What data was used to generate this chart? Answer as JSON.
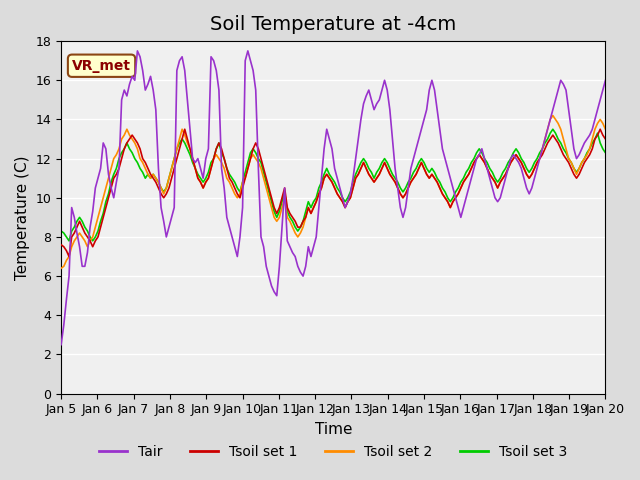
{
  "title": "Soil Temperature at -4cm",
  "xlabel": "Time",
  "ylabel": "Temperature (C)",
  "ylim": [
    0,
    18
  ],
  "yticks": [
    0,
    2,
    4,
    6,
    8,
    10,
    12,
    14,
    16,
    18
  ],
  "xlim": [
    0,
    360
  ],
  "xtick_labels": [
    "Jan 5",
    "Jan 6",
    "Jan 7",
    "Jan 8",
    "Jan 9",
    "Jan 10",
    "Jan 11",
    "Jan 12",
    "Jan 13",
    "Jan 14",
    "Jan 15",
    "Jan 16",
    "Jan 17",
    "Jan 18",
    "Jan 19",
    "Jan 20"
  ],
  "legend_labels": [
    "Tair",
    "Tsoil set 1",
    "Tsoil set 2",
    "Tsoil set 3"
  ],
  "legend_colors": [
    "#9932CC",
    "#CC0000",
    "#FF8C00",
    "#00CC00"
  ],
  "bg_color": "#E8E8E8",
  "plot_bg_color": "#F0F0F0",
  "watermark_text": "VR_met",
  "watermark_bg": "#FFFFCC",
  "watermark_border": "#8B4513",
  "watermark_text_color": "#8B0000",
  "title_fontsize": 14,
  "axis_label_fontsize": 11,
  "tick_fontsize": 9,
  "legend_fontsize": 10,
  "line_width": 1.2,
  "tair_color": "#9932CC",
  "tsoil1_color": "#CC0000",
  "tsoil2_color": "#FF8C00",
  "tsoil3_color": "#00CC00",
  "tair": [
    2.5,
    3.5,
    4.8,
    6.0,
    9.5,
    9.0,
    8.2,
    7.5,
    6.5,
    6.5,
    7.2,
    8.5,
    9.3,
    10.5,
    11.0,
    11.5,
    12.8,
    12.5,
    11.2,
    10.5,
    10.0,
    10.8,
    11.5,
    15.0,
    15.5,
    15.2,
    15.8,
    16.2,
    16.0,
    17.5,
    17.2,
    16.5,
    15.5,
    15.8,
    16.2,
    15.5,
    14.5,
    11.5,
    9.5,
    8.8,
    8.0,
    8.5,
    9.0,
    9.5,
    16.5,
    17.0,
    17.2,
    16.5,
    15.0,
    13.5,
    12.0,
    11.8,
    12.0,
    11.5,
    11.0,
    12.0,
    12.5,
    17.2,
    17.0,
    16.5,
    15.5,
    11.5,
    10.5,
    9.0,
    8.5,
    8.0,
    7.5,
    7.0,
    8.0,
    9.5,
    17.0,
    17.5,
    17.0,
    16.5,
    15.5,
    11.5,
    8.0,
    7.5,
    6.5,
    6.0,
    5.5,
    5.2,
    5.0,
    6.5,
    8.5,
    10.5,
    7.8,
    7.5,
    7.2,
    7.0,
    6.5,
    6.2,
    6.0,
    6.5,
    7.5,
    7.0,
    7.5,
    8.0,
    9.5,
    11.0,
    12.5,
    13.5,
    13.0,
    12.5,
    11.5,
    11.0,
    10.5,
    10.0,
    9.5,
    9.8,
    10.2,
    11.0,
    12.0,
    13.0,
    14.0,
    14.8,
    15.2,
    15.5,
    15.0,
    14.5,
    14.8,
    15.0,
    15.5,
    16.0,
    15.5,
    14.5,
    13.0,
    11.5,
    10.5,
    9.5,
    9.0,
    9.5,
    10.5,
    11.5,
    12.0,
    12.5,
    13.0,
    13.5,
    14.0,
    14.5,
    15.5,
    16.0,
    15.5,
    14.5,
    13.5,
    12.5,
    12.0,
    11.5,
    11.0,
    10.5,
    10.0,
    9.5,
    9.0,
    9.5,
    10.0,
    10.5,
    11.0,
    11.5,
    12.0,
    12.2,
    12.5,
    12.0,
    11.5,
    11.0,
    10.5,
    10.0,
    9.8,
    10.0,
    10.5,
    11.0,
    11.5,
    12.0,
    12.2,
    12.0,
    11.8,
    11.5,
    11.0,
    10.5,
    10.2,
    10.5,
    11.0,
    11.5,
    12.0,
    12.5,
    13.0,
    13.5,
    14.0,
    14.5,
    15.0,
    15.5,
    16.0,
    15.8,
    15.5,
    14.5,
    13.5,
    12.5,
    12.0,
    12.2,
    12.5,
    12.8,
    13.0,
    13.2,
    13.5,
    14.0,
    14.5,
    15.0,
    15.5,
    16.0
  ],
  "tsoil1": [
    7.6,
    7.5,
    7.3,
    7.0,
    8.0,
    8.2,
    8.5,
    8.8,
    8.5,
    8.2,
    8.0,
    7.8,
    7.5,
    7.8,
    8.0,
    8.5,
    9.0,
    9.5,
    10.0,
    10.5,
    11.0,
    11.2,
    11.5,
    12.0,
    12.5,
    12.8,
    13.0,
    13.2,
    13.0,
    12.8,
    12.5,
    12.0,
    11.8,
    11.5,
    11.2,
    11.0,
    10.8,
    10.5,
    10.2,
    10.0,
    10.2,
    10.5,
    11.0,
    11.5,
    12.0,
    12.5,
    13.0,
    13.5,
    13.0,
    12.5,
    12.0,
    11.5,
    11.0,
    10.8,
    10.5,
    10.8,
    11.0,
    11.5,
    12.0,
    12.5,
    12.8,
    12.5,
    12.0,
    11.5,
    11.0,
    10.8,
    10.5,
    10.2,
    10.0,
    10.5,
    11.0,
    11.5,
    12.0,
    12.5,
    12.8,
    12.5,
    12.0,
    11.5,
    11.0,
    10.5,
    10.0,
    9.5,
    9.2,
    9.5,
    10.0,
    10.5,
    9.5,
    9.2,
    9.0,
    8.8,
    8.5,
    8.5,
    8.8,
    9.0,
    9.5,
    9.2,
    9.5,
    9.8,
    10.2,
    10.5,
    11.0,
    11.2,
    11.0,
    10.8,
    10.5,
    10.2,
    10.0,
    9.8,
    9.5,
    9.8,
    10.0,
    10.5,
    11.0,
    11.2,
    11.5,
    11.8,
    11.5,
    11.2,
    11.0,
    10.8,
    11.0,
    11.2,
    11.5,
    11.8,
    11.5,
    11.2,
    11.0,
    10.8,
    10.5,
    10.2,
    10.0,
    10.2,
    10.5,
    10.8,
    11.0,
    11.2,
    11.5,
    11.8,
    11.5,
    11.2,
    11.0,
    11.2,
    11.0,
    10.8,
    10.5,
    10.2,
    10.0,
    9.8,
    9.5,
    9.8,
    10.0,
    10.2,
    10.5,
    10.8,
    11.0,
    11.2,
    11.5,
    11.8,
    12.0,
    12.2,
    12.0,
    11.8,
    11.5,
    11.2,
    11.0,
    10.8,
    10.5,
    10.8,
    11.0,
    11.2,
    11.5,
    11.8,
    12.0,
    12.2,
    12.0,
    11.8,
    11.5,
    11.2,
    11.0,
    11.2,
    11.5,
    11.8,
    12.0,
    12.2,
    12.5,
    12.8,
    13.0,
    13.2,
    13.0,
    12.8,
    12.5,
    12.2,
    12.0,
    11.8,
    11.5,
    11.2,
    11.0,
    11.2,
    11.5,
    11.8,
    12.0,
    12.2,
    12.5,
    13.0,
    13.2,
    13.5,
    13.2,
    13.0
  ],
  "tsoil2": [
    6.4,
    6.5,
    6.8,
    7.0,
    7.5,
    7.8,
    8.0,
    8.2,
    8.0,
    7.8,
    7.5,
    7.8,
    8.0,
    8.5,
    9.0,
    9.5,
    10.0,
    10.5,
    11.0,
    11.5,
    12.0,
    12.2,
    12.5,
    13.0,
    13.2,
    13.5,
    13.2,
    13.0,
    12.8,
    12.5,
    12.0,
    11.8,
    11.5,
    11.2,
    11.0,
    11.2,
    11.0,
    10.8,
    10.5,
    10.2,
    10.5,
    11.0,
    11.5,
    12.0,
    12.5,
    13.0,
    13.5,
    13.2,
    12.8,
    12.5,
    12.0,
    11.5,
    11.0,
    10.8,
    10.5,
    10.8,
    11.0,
    11.5,
    12.0,
    12.2,
    12.0,
    11.8,
    11.5,
    11.0,
    10.8,
    10.5,
    10.2,
    10.0,
    10.2,
    10.8,
    11.0,
    11.5,
    12.0,
    12.2,
    12.0,
    11.8,
    11.5,
    11.0,
    10.5,
    10.0,
    9.5,
    9.0,
    8.8,
    9.0,
    9.5,
    10.0,
    9.0,
    8.8,
    8.5,
    8.2,
    8.0,
    8.2,
    8.5,
    9.0,
    9.5,
    9.2,
    9.5,
    9.8,
    10.2,
    10.5,
    11.0,
    11.2,
    11.0,
    10.8,
    10.5,
    10.2,
    10.0,
    9.8,
    9.5,
    9.8,
    10.0,
    10.5,
    11.0,
    11.2,
    11.5,
    11.8,
    11.5,
    11.2,
    11.0,
    10.8,
    11.0,
    11.2,
    11.5,
    11.8,
    11.5,
    11.2,
    11.0,
    10.8,
    10.5,
    10.2,
    10.0,
    10.2,
    10.5,
    10.8,
    11.0,
    11.2,
    11.5,
    11.8,
    11.5,
    11.2,
    11.0,
    11.2,
    11.0,
    10.8,
    10.5,
    10.2,
    10.0,
    9.8,
    9.5,
    9.8,
    10.0,
    10.2,
    10.5,
    10.8,
    11.0,
    11.2,
    11.5,
    11.8,
    12.0,
    12.2,
    12.0,
    11.8,
    11.5,
    11.2,
    11.0,
    10.8,
    10.5,
    10.8,
    11.0,
    11.2,
    11.5,
    11.8,
    12.0,
    12.2,
    12.0,
    11.8,
    11.5,
    11.2,
    11.0,
    11.2,
    11.5,
    11.8,
    12.0,
    12.5,
    13.0,
    13.5,
    14.0,
    14.2,
    14.0,
    13.8,
    13.5,
    13.0,
    12.5,
    12.0,
    11.8,
    11.5,
    11.2,
    11.5,
    11.8,
    12.0,
    12.2,
    12.5,
    13.0,
    13.5,
    13.8,
    14.0,
    13.8,
    13.5
  ],
  "tsoil3": [
    8.3,
    8.2,
    8.0,
    7.8,
    8.3,
    8.5,
    8.8,
    9.0,
    8.8,
    8.5,
    8.3,
    8.0,
    7.8,
    8.0,
    8.3,
    8.8,
    9.2,
    9.8,
    10.2,
    10.8,
    11.2,
    11.5,
    12.0,
    12.3,
    12.5,
    12.8,
    12.5,
    12.3,
    12.0,
    11.8,
    11.5,
    11.3,
    11.0,
    11.2,
    11.0,
    11.2,
    11.0,
    10.8,
    10.5,
    10.3,
    10.5,
    11.0,
    11.5,
    12.0,
    12.5,
    12.8,
    13.0,
    12.8,
    12.5,
    12.2,
    11.8,
    11.5,
    11.2,
    11.0,
    10.8,
    11.0,
    11.3,
    11.8,
    12.0,
    12.5,
    12.8,
    12.3,
    12.0,
    11.5,
    11.2,
    11.0,
    10.8,
    10.5,
    10.3,
    10.8,
    11.3,
    11.8,
    12.3,
    12.5,
    12.3,
    12.0,
    11.8,
    11.3,
    10.8,
    10.3,
    9.8,
    9.3,
    9.0,
    9.3,
    9.8,
    10.3,
    9.3,
    9.0,
    8.8,
    8.5,
    8.3,
    8.5,
    8.8,
    9.3,
    9.8,
    9.5,
    9.8,
    10.0,
    10.5,
    10.8,
    11.2,
    11.5,
    11.2,
    11.0,
    10.8,
    10.5,
    10.3,
    10.0,
    9.8,
    10.0,
    10.3,
    10.8,
    11.2,
    11.5,
    11.8,
    12.0,
    11.8,
    11.5,
    11.3,
    11.0,
    11.3,
    11.5,
    11.8,
    12.0,
    11.8,
    11.5,
    11.2,
    11.0,
    10.8,
    10.5,
    10.3,
    10.5,
    10.8,
    11.0,
    11.3,
    11.5,
    11.8,
    12.0,
    11.8,
    11.5,
    11.3,
    11.5,
    11.3,
    11.0,
    10.8,
    10.5,
    10.3,
    10.0,
    9.8,
    10.0,
    10.3,
    10.5,
    10.8,
    11.0,
    11.3,
    11.5,
    11.8,
    12.0,
    12.3,
    12.5,
    12.3,
    12.0,
    11.8,
    11.5,
    11.3,
    11.0,
    10.8,
    11.0,
    11.3,
    11.5,
    11.8,
    12.0,
    12.3,
    12.5,
    12.3,
    12.0,
    11.8,
    11.5,
    11.3,
    11.5,
    11.8,
    12.0,
    12.3,
    12.5,
    12.8,
    13.0,
    13.3,
    13.5,
    13.3,
    13.0,
    12.8,
    12.5,
    12.3,
    12.0,
    11.8,
    11.5,
    11.3,
    11.5,
    11.8,
    12.0,
    12.3,
    12.5,
    12.8,
    13.0,
    13.3,
    12.8,
    12.5,
    12.3
  ]
}
